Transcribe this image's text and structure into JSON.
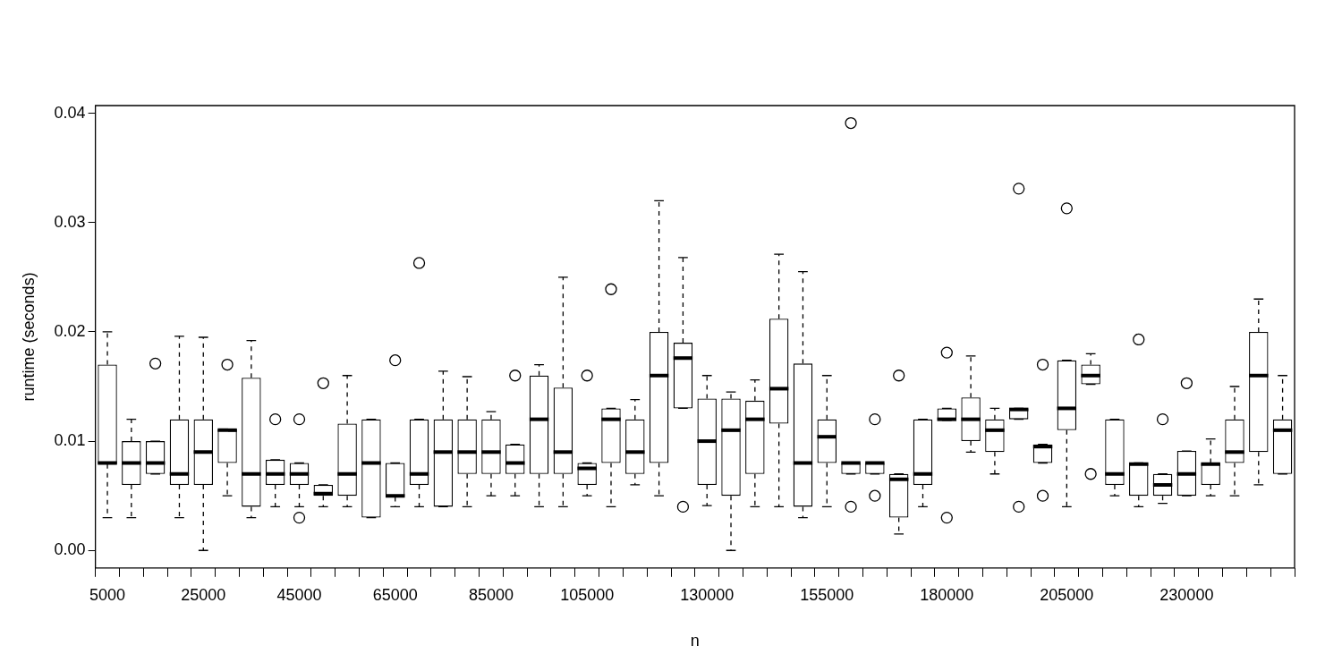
{
  "chart_data": {
    "type": "box",
    "xlabel": "n",
    "ylabel": "runtime (seconds)",
    "categories": [
      "5000",
      null,
      null,
      null,
      "25000",
      null,
      null,
      null,
      "45000",
      null,
      null,
      null,
      "65000",
      null,
      null,
      null,
      "85000",
      null,
      null,
      null,
      "105000",
      null,
      null,
      null,
      null,
      "130000",
      null,
      null,
      null,
      null,
      "155000",
      null,
      null,
      null,
      null,
      "180000",
      null,
      null,
      null,
      null,
      "205000",
      null,
      null,
      null,
      null,
      "230000",
      null,
      null,
      null,
      null
    ],
    "ylim": [
      -0.0016,
      0.0407
    ],
    "yticks": [
      {
        "value": 0,
        "label": "0.00"
      },
      0.01,
      0.02,
      0.03,
      0.04
    ],
    "boxes": [
      {
        "low": 0.003,
        "q1": 0.0079,
        "median": 0.008,
        "q3": 0.017,
        "high": 0.02
      },
      {
        "low": 0.003,
        "q1": 0.006,
        "median": 0.008,
        "q3": 0.01,
        "high": 0.012
      },
      {
        "low": 0.007,
        "q1": 0.007,
        "median": 0.008,
        "q3": 0.01,
        "high": 0.01,
        "outliers": [
          0.0171
        ]
      },
      {
        "low": 0.003,
        "q1": 0.006,
        "median": 0.007,
        "q3": 0.012,
        "high": 0.0196
      },
      {
        "low": 0,
        "q1": 0.006,
        "median": 0.009,
        "q3": 0.012,
        "high": 0.0195
      },
      {
        "low": 0.005,
        "q1": 0.008,
        "median": 0.011,
        "q3": 0.0111,
        "high": 0.0111,
        "outliers": [
          0.017
        ]
      },
      {
        "low": 0.003,
        "q1": 0.004,
        "median": 0.007,
        "q3": 0.0158,
        "high": 0.0192
      },
      {
        "low": 0.004,
        "q1": 0.006,
        "median": 0.007,
        "q3": 0.0083,
        "high": 0.0083,
        "outliers": [
          0.012
        ]
      },
      {
        "low": 0.004,
        "q1": 0.006,
        "median": 0.007,
        "q3": 0.008,
        "high": 0.008,
        "outliers": [
          0.012,
          0.003
        ]
      },
      {
        "low": 0.004,
        "q1": 0.005,
        "median": 0.0052,
        "q3": 0.006,
        "high": 0.006,
        "outliers": [
          0.0153
        ]
      },
      {
        "low": 0.004,
        "q1": 0.005,
        "median": 0.007,
        "q3": 0.0116,
        "high": 0.016
      },
      {
        "low": 0.003,
        "q1": 0.003,
        "median": 0.008,
        "q3": 0.012,
        "high": 0.012
      },
      {
        "low": 0.004,
        "q1": 0.0049,
        "median": 0.005,
        "q3": 0.008,
        "high": 0.008,
        "outliers": [
          0.0174
        ]
      },
      {
        "low": 0.004,
        "q1": 0.006,
        "median": 0.007,
        "q3": 0.012,
        "high": 0.012,
        "outliers": [
          0.0263
        ]
      },
      {
        "low": 0.004,
        "q1": 0.004,
        "median": 0.009,
        "q3": 0.012,
        "high": 0.0164
      },
      {
        "low": 0.004,
        "q1": 0.007,
        "median": 0.009,
        "q3": 0.012,
        "high": 0.0159
      },
      {
        "low": 0.005,
        "q1": 0.007,
        "median": 0.009,
        "q3": 0.012,
        "high": 0.0127
      },
      {
        "low": 0.005,
        "q1": 0.007,
        "median": 0.008,
        "q3": 0.0097,
        "high": 0.0097,
        "outliers": [
          0.016
        ]
      },
      {
        "low": 0.004,
        "q1": 0.007,
        "median": 0.012,
        "q3": 0.016,
        "high": 0.017
      },
      {
        "low": 0.004,
        "q1": 0.007,
        "median": 0.009,
        "q3": 0.0149,
        "high": 0.025
      },
      {
        "low": 0.005,
        "q1": 0.006,
        "median": 0.0075,
        "q3": 0.008,
        "high": 0.008,
        "outliers": [
          0.016
        ]
      },
      {
        "low": 0.004,
        "q1": 0.008,
        "median": 0.012,
        "q3": 0.013,
        "high": 0.013,
        "outliers": [
          0.0239
        ]
      },
      {
        "low": 0.006,
        "q1": 0.007,
        "median": 0.009,
        "q3": 0.012,
        "high": 0.0138
      },
      {
        "low": 0.005,
        "q1": 0.008,
        "median": 0.016,
        "q3": 0.02,
        "high": 0.032
      },
      {
        "low": 0.013,
        "q1": 0.013,
        "median": 0.0176,
        "q3": 0.019,
        "high": 0.0268,
        "outliers": [
          0.004
        ]
      },
      {
        "low": 0.0041,
        "q1": 0.006,
        "median": 0.01,
        "q3": 0.0139,
        "high": 0.016
      },
      {
        "low": 0,
        "q1": 0.005,
        "median": 0.011,
        "q3": 0.0139,
        "high": 0.0145
      },
      {
        "low": 0.004,
        "q1": 0.007,
        "median": 0.012,
        "q3": 0.0137,
        "high": 0.0156
      },
      {
        "low": 0.004,
        "q1": 0.0116,
        "median": 0.0148,
        "q3": 0.0212,
        "high": 0.0271
      },
      {
        "low": 0.003,
        "q1": 0.004,
        "median": 0.008,
        "q3": 0.0171,
        "high": 0.0255
      },
      {
        "low": 0.004,
        "q1": 0.008,
        "median": 0.0104,
        "q3": 0.012,
        "high": 0.016
      },
      {
        "low": 0.007,
        "q1": 0.007,
        "median": 0.008,
        "q3": 0.008,
        "high": 0.008,
        "outliers": [
          0.0391,
          0.004
        ]
      },
      {
        "low": 0.007,
        "q1": 0.007,
        "median": 0.008,
        "q3": 0.008,
        "high": 0.008,
        "outliers": [
          0.012,
          0.005
        ]
      },
      {
        "low": 0.0015,
        "q1": 0.003,
        "median": 0.0065,
        "q3": 0.007,
        "high": 0.007,
        "outliers": [
          0.016
        ]
      },
      {
        "low": 0.004,
        "q1": 0.006,
        "median": 0.007,
        "q3": 0.012,
        "high": 0.012
      },
      {
        "low": 0.0119,
        "q1": 0.0119,
        "median": 0.012,
        "q3": 0.013,
        "high": 0.013,
        "outliers": [
          0.0181,
          0.003
        ]
      },
      {
        "low": 0.009,
        "q1": 0.01,
        "median": 0.012,
        "q3": 0.014,
        "high": 0.0178
      },
      {
        "low": 0.007,
        "q1": 0.009,
        "median": 0.011,
        "q3": 0.012,
        "high": 0.013
      },
      {
        "low": 0.012,
        "q1": 0.012,
        "median": 0.0129,
        "q3": 0.013,
        "high": 0.013,
        "outliers": [
          0.0331,
          0.004
        ]
      },
      {
        "low": 0.008,
        "q1": 0.008,
        "median": 0.0095,
        "q3": 0.0097,
        "high": 0.0097,
        "outliers": [
          0.017,
          0.005
        ]
      },
      {
        "low": 0.004,
        "q1": 0.011,
        "median": 0.013,
        "q3": 0.0174,
        "high": 0.0174,
        "outliers": [
          0.0313
        ]
      },
      {
        "low": 0.0152,
        "q1": 0.0152,
        "median": 0.016,
        "q3": 0.017,
        "high": 0.018,
        "outliers": [
          0.007
        ]
      },
      {
        "low": 0.005,
        "q1": 0.006,
        "median": 0.007,
        "q3": 0.012,
        "high": 0.012
      },
      {
        "low": 0.004,
        "q1": 0.005,
        "median": 0.0079,
        "q3": 0.008,
        "high": 0.008,
        "outliers": [
          0.0193
        ]
      },
      {
        "low": 0.0043,
        "q1": 0.005,
        "median": 0.006,
        "q3": 0.007,
        "high": 0.007,
        "outliers": [
          0.012
        ]
      },
      {
        "low": 0.005,
        "q1": 0.005,
        "median": 0.007,
        "q3": 0.0091,
        "high": 0.0091,
        "outliers": [
          0.0153
        ]
      },
      {
        "low": 0.005,
        "q1": 0.006,
        "median": 0.0079,
        "q3": 0.008,
        "high": 0.0102
      },
      {
        "low": 0.005,
        "q1": 0.008,
        "median": 0.009,
        "q3": 0.012,
        "high": 0.015
      },
      {
        "low": 0.006,
        "q1": 0.009,
        "median": 0.016,
        "q3": 0.02,
        "high": 0.023
      },
      {
        "low": 0.007,
        "q1": 0.007,
        "median": 0.011,
        "q3": 0.012,
        "high": 0.016
      }
    ]
  }
}
